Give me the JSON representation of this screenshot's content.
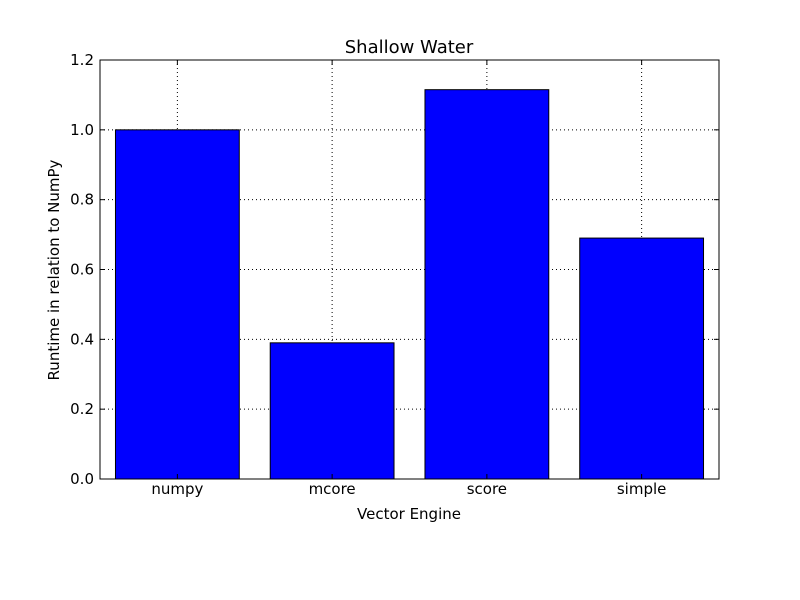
{
  "chart_data": {
    "type": "bar",
    "title": "Shallow Water",
    "xlabel": "Vector Engine",
    "ylabel": "Runtime in relation to NumPy",
    "categories": [
      "numpy",
      "mcore",
      "score",
      "simple"
    ],
    "values": [
      1.0,
      0.39,
      1.115,
      0.69
    ],
    "ylim": [
      0.0,
      1.2
    ],
    "yticks": [
      "0.0",
      "0.2",
      "0.4",
      "0.6",
      "0.8",
      "1.0",
      "1.2"
    ],
    "grid": true,
    "bar_color": "#0000ff",
    "edge_color": "#000000"
  }
}
